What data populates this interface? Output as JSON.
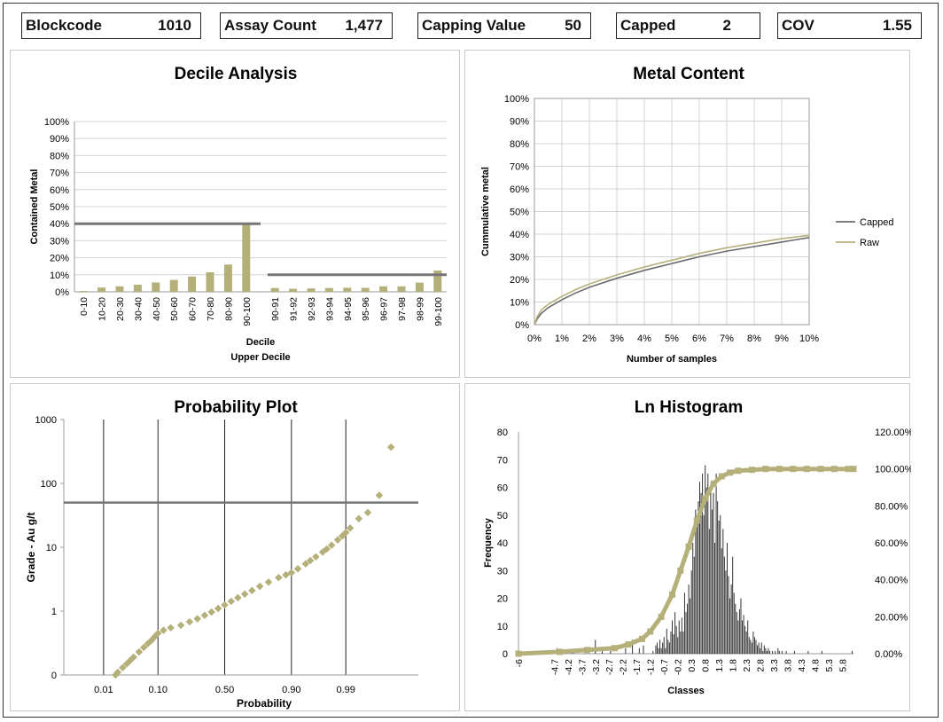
{
  "stats": {
    "blockcode": {
      "label": "Blockcode",
      "value": "1010"
    },
    "assay_count": {
      "label": "Assay Count",
      "value": "1,477"
    },
    "capping_value": {
      "label": "Capping Value",
      "value": "50"
    },
    "capped": {
      "label": "Capped",
      "value": "2"
    },
    "cov": {
      "label": "COV",
      "value": "1.55"
    }
  },
  "colors": {
    "olive": "#B5B07A",
    "gray_line": "#767676",
    "grid": "#d3d3d3"
  },
  "chart_data": [
    {
      "id": "decile",
      "type": "bar",
      "title": "Decile Analysis",
      "ylabel": "Contained Metal",
      "xlabel": "Decile",
      "xlabel2": "Upper Decile",
      "ylim": [
        0,
        100
      ],
      "yticks": [
        "0%",
        "10%",
        "20%",
        "30%",
        "40%",
        "50%",
        "60%",
        "70%",
        "80%",
        "90%",
        "100%"
      ],
      "categories": [
        "0-10",
        "10-20",
        "20-30",
        "30-40",
        "40-50",
        "50-60",
        "60-70",
        "70-80",
        "80-90",
        "90-100",
        "90-91",
        "91-92",
        "92-93",
        "93-94",
        "94-95",
        "95-96",
        "96-97",
        "97-98",
        "98-99",
        "99-100"
      ],
      "values": [
        0.5,
        2.5,
        3.2,
        4.2,
        5.5,
        7,
        9,
        11.5,
        16,
        40,
        2.2,
        1.8,
        2,
        2.2,
        2.4,
        2.3,
        3.2,
        3.2,
        5.4,
        12.5
      ],
      "reference_lines": [
        40,
        10
      ]
    },
    {
      "id": "metal",
      "type": "line",
      "title": "Metal Content",
      "xlabel": "Number of samples",
      "ylabel": "Cummulative metal",
      "xlim": [
        0,
        10
      ],
      "ylim": [
        0,
        100
      ],
      "xticks": [
        "0%",
        "1%",
        "2%",
        "3%",
        "4%",
        "5%",
        "6%",
        "7%",
        "8%",
        "9%",
        "10%"
      ],
      "yticks": [
        "0%",
        "10%",
        "20%",
        "30%",
        "40%",
        "50%",
        "60%",
        "70%",
        "80%",
        "90%",
        "100%"
      ],
      "series": [
        {
          "name": "Capped",
          "color": "#6b6b6b",
          "x": [
            0,
            0.1,
            0.25,
            0.5,
            1,
            1.5,
            2,
            3,
            4,
            5,
            6,
            7,
            8,
            9,
            10
          ],
          "y": [
            0,
            2.5,
            5,
            7.5,
            11,
            14,
            16.5,
            20.5,
            24,
            27,
            30,
            32.5,
            34.5,
            36.5,
            38.5
          ]
        },
        {
          "name": "Raw",
          "color": "#B5B07A",
          "x": [
            0,
            0.1,
            0.25,
            0.5,
            1,
            1.5,
            2,
            3,
            4,
            5,
            6,
            7,
            8,
            9,
            10
          ],
          "y": [
            0,
            3.5,
            6.5,
            9,
            12.5,
            15.5,
            18,
            22,
            25.5,
            28.5,
            31.5,
            34,
            36,
            38,
            39.5
          ]
        }
      ]
    },
    {
      "id": "prob",
      "type": "scatter",
      "title": "Probability Plot",
      "xlabel": "Probability",
      "ylabel": "Grade - Au g/t",
      "xticks": [
        "0.01",
        "0.10",
        "0.50",
        "0.90",
        "0.99"
      ],
      "xtick_probs": [
        0.01,
        0.1,
        0.5,
        0.9,
        0.99
      ],
      "yticks": [
        "0",
        "1",
        "10",
        "100",
        "1000"
      ],
      "capping_value": 50,
      "series": [
        {
          "name": "Assays",
          "p": [
            0.018,
            0.02,
            0.025,
            0.03,
            0.035,
            0.04,
            0.05,
            0.06,
            0.07,
            0.08,
            0.09,
            0.1,
            0.12,
            0.15,
            0.2,
            0.25,
            0.3,
            0.35,
            0.4,
            0.45,
            0.5,
            0.55,
            0.6,
            0.65,
            0.7,
            0.75,
            0.8,
            0.85,
            0.88,
            0.9,
            0.92,
            0.94,
            0.95,
            0.96,
            0.97,
            0.975,
            0.98,
            0.985,
            0.988,
            0.99,
            0.992,
            0.995,
            0.997,
            0.9985,
            0.9993
          ],
          "g": [
            0.1,
            0.11,
            0.13,
            0.15,
            0.17,
            0.19,
            0.23,
            0.27,
            0.31,
            0.35,
            0.4,
            0.45,
            0.5,
            0.55,
            0.6,
            0.68,
            0.76,
            0.86,
            0.97,
            1.1,
            1.25,
            1.42,
            1.62,
            1.85,
            2.1,
            2.45,
            2.85,
            3.35,
            3.7,
            4.0,
            4.6,
            5.5,
            6.2,
            7.1,
            8.4,
            9.4,
            10.8,
            13,
            15,
            17,
            20,
            28,
            35,
            65,
            370
          ]
        }
      ]
    },
    {
      "id": "hist",
      "type": "bar",
      "title": "Ln Histogram",
      "xlabel": "Classes",
      "ylabel": "Frequency",
      "ylim": [
        0,
        80
      ],
      "y2lim": [
        0,
        120
      ],
      "yticks": [
        "0",
        "10",
        "20",
        "30",
        "40",
        "50",
        "60",
        "70",
        "80"
      ],
      "y2ticks": [
        "0.00%",
        "20.00%",
        "40.00%",
        "60.00%",
        "80.00%",
        "100.00%",
        "120.00%"
      ],
      "xticks": [
        "-6",
        "-4.7",
        "-4.2",
        "-3.7",
        "-3.2",
        "-2.7",
        "-2.2",
        "-1.7",
        "-1.2",
        "-0.7",
        "-0.2",
        "0.3",
        "0.8",
        "1.3",
        "1.8",
        "2.3",
        "2.8",
        "3.3",
        "3.8",
        "4.3",
        "4.8",
        "5.3",
        "5.8"
      ],
      "class_start": -6.0,
      "class_width": 0.05,
      "frequencies": [
        1,
        0,
        0,
        0,
        0,
        0,
        0,
        0,
        0,
        0,
        0,
        0,
        0,
        0,
        0,
        0,
        0,
        0,
        0,
        0,
        0,
        0,
        0,
        0,
        0,
        0,
        0,
        1,
        2,
        0,
        0,
        1,
        0,
        0,
        0,
        0,
        0,
        0,
        0,
        0,
        1,
        0,
        0,
        0,
        0,
        0,
        0,
        0,
        0,
        0,
        0,
        0,
        0,
        0,
        0,
        0,
        5,
        0,
        0,
        0,
        0,
        1,
        0,
        0,
        0,
        0,
        0,
        1,
        0,
        0,
        0,
        0,
        0,
        0,
        0,
        0,
        0,
        0,
        2,
        0,
        0,
        0,
        0,
        5,
        0,
        0,
        0,
        0,
        2,
        0,
        0,
        3,
        0,
        0,
        0,
        0,
        0,
        0,
        1,
        0,
        3,
        4,
        2,
        5,
        2,
        4,
        6,
        2,
        9,
        5,
        4,
        8,
        12,
        7,
        15,
        10,
        6,
        12,
        8,
        13,
        8,
        22,
        15,
        18,
        25,
        20,
        30,
        40,
        35,
        52,
        48,
        55,
        62,
        58,
        65,
        50,
        68,
        60,
        65,
        45,
        60,
        52,
        58,
        40,
        65,
        55,
        48,
        50,
        38,
        45,
        35,
        30,
        40,
        28,
        20,
        25,
        35,
        22,
        18,
        15,
        12,
        16,
        20,
        12,
        14,
        10,
        8,
        12,
        6,
        5,
        4,
        8,
        6,
        5,
        3,
        4,
        2,
        4,
        1,
        3,
        2,
        1,
        2,
        1,
        0,
        1,
        0,
        1,
        0,
        2,
        1,
        0,
        1,
        0,
        0,
        1,
        0,
        0,
        0,
        0,
        0,
        1,
        0,
        0,
        0,
        0,
        0,
        0,
        0,
        0,
        0,
        1,
        0,
        0,
        0,
        0,
        0,
        0,
        0,
        0,
        0,
        1,
        0,
        0,
        0,
        0,
        0,
        0,
        0,
        0,
        0,
        0,
        0,
        0,
        0,
        0,
        0,
        0,
        0,
        0,
        0,
        0,
        0,
        1,
        0,
        0,
        0,
        0,
        0,
        0,
        0,
        0,
        0,
        0,
        0,
        0,
        0,
        0
      ],
      "cumulative_pct": [
        0,
        1,
        2,
        3,
        5,
        8,
        12,
        20,
        32,
        45,
        58,
        72,
        84,
        92,
        96,
        98,
        99,
        99.5,
        100,
        100,
        100,
        100,
        100,
        100,
        100,
        100
      ],
      "cumulative_x": [
        -6,
        -4.5,
        -3.5,
        -2.5,
        -2.0,
        -1.5,
        -1.2,
        -0.8,
        -0.4,
        -0.1,
        0.2,
        0.5,
        0.8,
        1.1,
        1.4,
        1.7,
        2.0,
        2.5,
        3.0,
        3.5,
        4.0,
        4.5,
        5.0,
        5.5,
        6.0,
        6.2
      ]
    }
  ]
}
